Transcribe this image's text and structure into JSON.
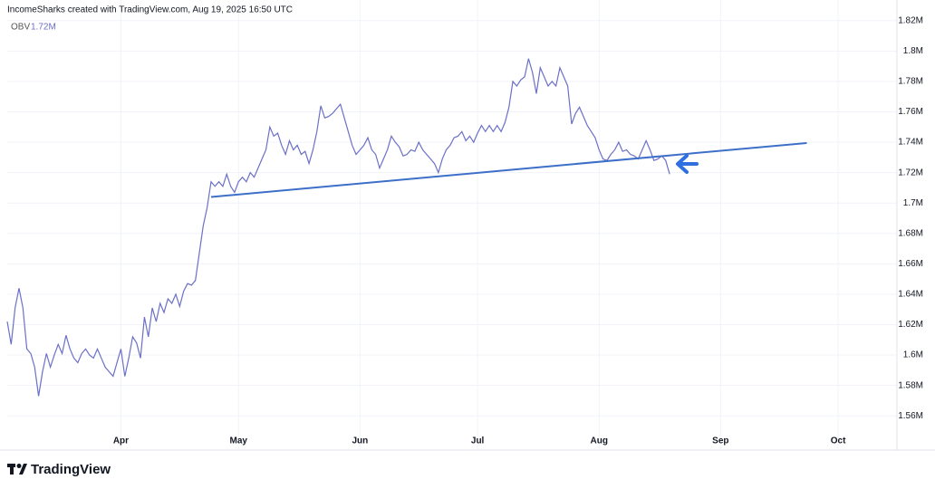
{
  "header": "IncomeSharks created with TradingView.com, Aug 19, 2025 16:50 UTC",
  "brand": "TradingView",
  "chart_data": {
    "type": "line",
    "series": [
      {
        "name": "OBV",
        "color": "#6b70c8",
        "last_value_label": "1.72M",
        "values": [
          1.622,
          1.607,
          1.631,
          1.644,
          1.631,
          1.604,
          1.601,
          1.592,
          1.573,
          1.589,
          1.601,
          1.592,
          1.6,
          1.607,
          1.601,
          1.613,
          1.604,
          1.598,
          1.595,
          1.601,
          1.604,
          1.6,
          1.598,
          1.604,
          1.598,
          1.592,
          1.589,
          1.586,
          1.595,
          1.604,
          1.586,
          1.598,
          1.612,
          1.608,
          1.598,
          1.625,
          1.612,
          1.631,
          1.622,
          1.634,
          1.628,
          1.637,
          1.634,
          1.64,
          1.632,
          1.642,
          1.647,
          1.646,
          1.649,
          1.667,
          1.685,
          1.697,
          1.714,
          1.711,
          1.714,
          1.711,
          1.719,
          1.711,
          1.707,
          1.714,
          1.717,
          1.714,
          1.72,
          1.717,
          1.723,
          1.729,
          1.735,
          1.75,
          1.744,
          1.746,
          1.738,
          1.732,
          1.741,
          1.735,
          1.738,
          1.732,
          1.734,
          1.726,
          1.735,
          1.747,
          1.764,
          1.756,
          1.757,
          1.759,
          1.762,
          1.765,
          1.756,
          1.747,
          1.738,
          1.732,
          1.735,
          1.738,
          1.743,
          1.735,
          1.732,
          1.723,
          1.729,
          1.735,
          1.744,
          1.74,
          1.737,
          1.731,
          1.732,
          1.735,
          1.734,
          1.74,
          1.735,
          1.732,
          1.729,
          1.726,
          1.72,
          1.729,
          1.735,
          1.738,
          1.743,
          1.744,
          1.747,
          1.741,
          1.744,
          1.74,
          1.746,
          1.751,
          1.747,
          1.751,
          1.747,
          1.751,
          1.747,
          1.753,
          1.763,
          1.78,
          1.777,
          1.781,
          1.783,
          1.795,
          1.786,
          1.772,
          1.789,
          1.783,
          1.777,
          1.78,
          1.777,
          1.789,
          1.783,
          1.777,
          1.752,
          1.759,
          1.763,
          1.757,
          1.751,
          1.747,
          1.743,
          1.735,
          1.729,
          1.728,
          1.732,
          1.735,
          1.74,
          1.734,
          1.735,
          1.732,
          1.731,
          1.729,
          1.735,
          1.741,
          1.735,
          1.728,
          1.729,
          1.731,
          1.728,
          1.719
        ]
      }
    ],
    "trendline": {
      "color": "#3d6fc9",
      "x": [
        52,
        204
      ],
      "values": [
        1.704,
        1.7395
      ]
    },
    "xlim": [
      0,
      227
    ],
    "xticks": [
      {
        "value": 29,
        "label": "Apr"
      },
      {
        "value": 59,
        "label": "May"
      },
      {
        "value": 90,
        "label": "Jun"
      },
      {
        "value": 120,
        "label": "Jul"
      },
      {
        "value": 151,
        "label": "Aug"
      },
      {
        "value": 182,
        "label": "Sep"
      },
      {
        "value": 212,
        "label": "Oct"
      }
    ],
    "ylim": [
      1.55,
      1.83
    ],
    "yticks": [
      {
        "value": 1.56,
        "label": "1.56M"
      },
      {
        "value": 1.58,
        "label": "1.58M"
      },
      {
        "value": 1.6,
        "label": "1.6M"
      },
      {
        "value": 1.62,
        "label": "1.62M"
      },
      {
        "value": 1.64,
        "label": "1.64M"
      },
      {
        "value": 1.66,
        "label": "1.66M"
      },
      {
        "value": 1.68,
        "label": "1.68M"
      },
      {
        "value": 1.7,
        "label": "1.7M"
      },
      {
        "value": 1.72,
        "label": "1.72M"
      },
      {
        "value": 1.74,
        "label": "1.74M"
      },
      {
        "value": 1.76,
        "label": "1.76M"
      },
      {
        "value": 1.78,
        "label": "1.78M"
      },
      {
        "value": 1.8,
        "label": "1.8M"
      },
      {
        "value": 1.82,
        "label": "1.82M"
      }
    ],
    "grid": true
  }
}
